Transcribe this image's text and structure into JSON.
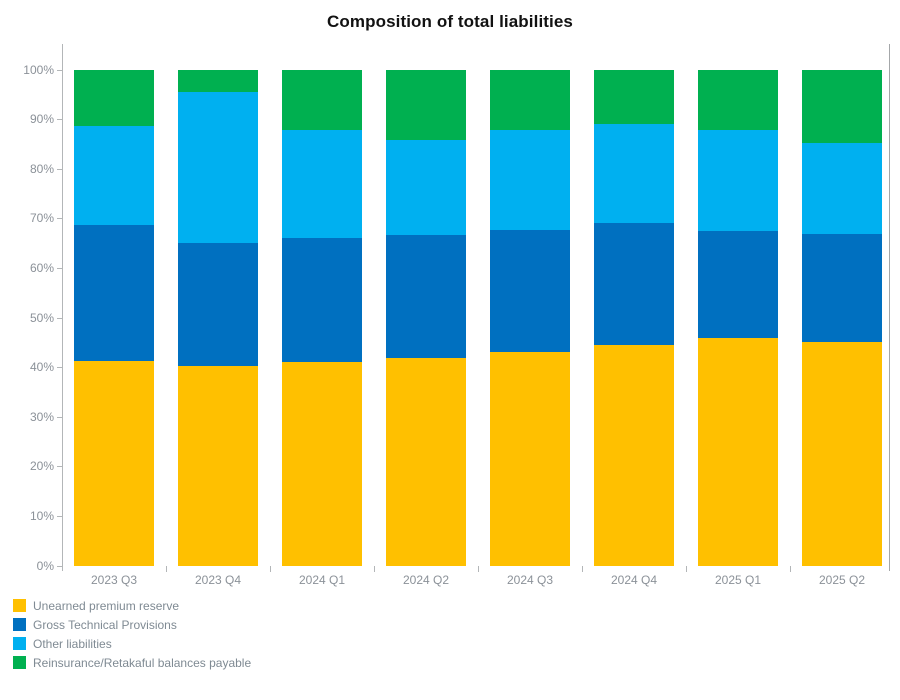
{
  "title": "Composition of total liabilities",
  "chart_data": {
    "type": "bar",
    "stacked": true,
    "unit": "percent share of total liabilities",
    "title": "Composition of total liabilities",
    "categories": [
      "2023 Q3",
      "2023 Q4",
      "2024 Q1",
      "2024 Q2",
      "2024 Q3",
      "2024 Q4",
      "2025 Q1",
      "2025 Q2"
    ],
    "series": [
      {
        "name": "Unearned premium reserve",
        "color": "#FFC000",
        "values": [
          41.3,
          40.3,
          41.1,
          41.9,
          43.1,
          44.6,
          46.0,
          45.2
        ]
      },
      {
        "name": "Gross Technical Provisions",
        "color": "#0070C0",
        "values": [
          27.5,
          24.9,
          25.1,
          24.8,
          24.6,
          24.5,
          21.5,
          21.7
        ]
      },
      {
        "name": "Other liabilities",
        "color": "#00B0F0",
        "values": [
          20.0,
          30.4,
          21.8,
          19.3,
          20.3,
          20.1,
          20.5,
          18.4
        ]
      },
      {
        "name": "Reinsurance/Retakaful balances payable",
        "color": "#00B050",
        "values": [
          11.2,
          4.4,
          12.0,
          14.0,
          12.0,
          10.8,
          12.0,
          14.7
        ]
      }
    ],
    "ylim": [
      0,
      100
    ],
    "y_tick_labels": [
      "0%",
      "10%",
      "20%",
      "30%",
      "40%",
      "50%",
      "60%",
      "70%",
      "80%",
      "90%",
      "100%"
    ],
    "grid": false,
    "legend_position": "bottom-left"
  },
  "legend": {
    "items": [
      {
        "label": "Unearned premium reserve",
        "color": "#FFC000"
      },
      {
        "label": "Gross Technical Provisions",
        "color": "#0070C0"
      },
      {
        "label": "Other liabilities",
        "color": "#00B0F0"
      },
      {
        "label": "Reinsurance/Retakaful balances payable",
        "color": "#00B050"
      }
    ]
  },
  "style": {
    "axis_line_color": "#b3b6b8",
    "axis_label_color": "#8b9198",
    "legend_label_color": "#7f8a93",
    "title_color": "#121212"
  }
}
